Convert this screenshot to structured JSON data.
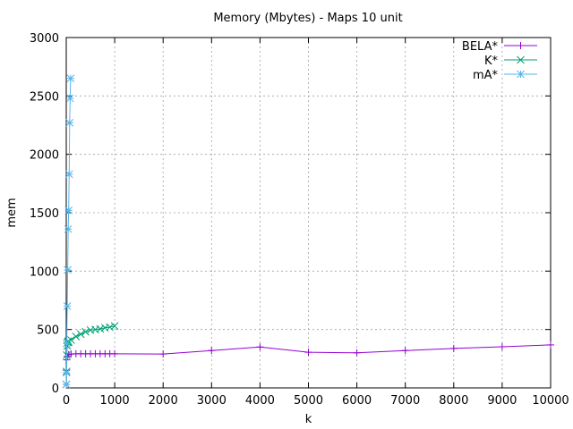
{
  "chart_data": {
    "type": "line",
    "title": "Memory (Mbytes) - Maps 10 unit",
    "xlabel": "k",
    "ylabel": "mem",
    "xlim": [
      0,
      10000
    ],
    "ylim": [
      0,
      3000
    ],
    "x_ticks": [
      0,
      1000,
      2000,
      3000,
      4000,
      5000,
      6000,
      7000,
      8000,
      9000,
      10000
    ],
    "y_ticks": [
      0,
      500,
      1000,
      1500,
      2000,
      2500,
      3000
    ],
    "grid": true,
    "legend_position": "top-right",
    "series": [
      {
        "name": "BELA*",
        "color": "#9400d3",
        "marker": "plus",
        "points": [
          [
            1,
            30
          ],
          [
            5,
            150
          ],
          [
            10,
            240
          ],
          [
            20,
            270
          ],
          [
            50,
            285
          ],
          [
            100,
            290
          ],
          [
            200,
            292
          ],
          [
            300,
            292
          ],
          [
            400,
            292
          ],
          [
            500,
            292
          ],
          [
            600,
            292
          ],
          [
            700,
            292
          ],
          [
            800,
            292
          ],
          [
            900,
            292
          ],
          [
            1000,
            292
          ],
          [
            2000,
            290
          ],
          [
            3000,
            320
          ],
          [
            4000,
            350
          ],
          [
            5000,
            305
          ],
          [
            6000,
            300
          ],
          [
            7000,
            320
          ],
          [
            8000,
            338
          ],
          [
            9000,
            352
          ],
          [
            10000,
            368
          ]
        ]
      },
      {
        "name": "K*",
        "color": "#009e73",
        "marker": "cross",
        "points": [
          [
            1,
            30
          ],
          [
            5,
            140
          ],
          [
            10,
            280
          ],
          [
            20,
            360
          ],
          [
            30,
            390
          ],
          [
            40,
            400
          ],
          [
            50,
            390
          ],
          [
            100,
            410
          ],
          [
            200,
            440
          ],
          [
            300,
            460
          ],
          [
            400,
            480
          ],
          [
            500,
            495
          ],
          [
            600,
            500
          ],
          [
            700,
            505
          ],
          [
            800,
            515
          ],
          [
            900,
            520
          ],
          [
            1000,
            530
          ]
        ]
      },
      {
        "name": "mA*",
        "color": "#56b4e9",
        "marker": "star",
        "points": [
          [
            1,
            30
          ],
          [
            5,
            130
          ],
          [
            10,
            380
          ],
          [
            20,
            700
          ],
          [
            30,
            1010
          ],
          [
            40,
            1360
          ],
          [
            50,
            1520
          ],
          [
            60,
            1830
          ],
          [
            70,
            2270
          ],
          [
            80,
            2480
          ],
          [
            90,
            2650
          ]
        ]
      }
    ]
  }
}
